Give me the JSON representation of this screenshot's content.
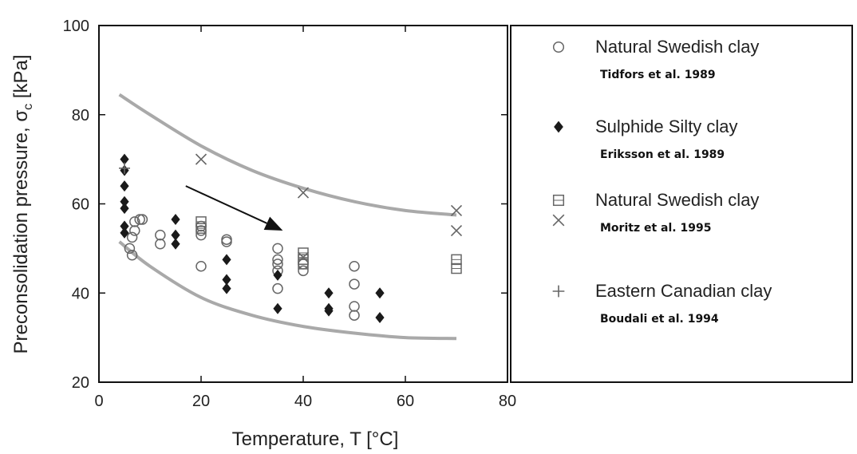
{
  "chart_data": {
    "type": "scatter",
    "xlabel": "Temperature, T [°C]",
    "ylabel_main": "Preconsolidation pressure, σ",
    "ylabel_sub": "c",
    "ylabel_end": " [kPa]",
    "xlim": [
      0,
      80
    ],
    "ylim": [
      20,
      100
    ],
    "x_ticks": [
      "0",
      "20",
      "40",
      "60",
      "80"
    ],
    "y_ticks": [
      "20",
      "40",
      "60",
      "80",
      "100"
    ],
    "legend_position": "right",
    "series": [
      {
        "marker": "circle",
        "points": [
          [
            6,
            50
          ],
          [
            6.5,
            48.5
          ],
          [
            6.5,
            52.5
          ],
          [
            7,
            54
          ],
          [
            7,
            56
          ],
          [
            8,
            56.5
          ],
          [
            8.5,
            56.5
          ],
          [
            12,
            51
          ],
          [
            12,
            53
          ],
          [
            20,
            46
          ],
          [
            20,
            53
          ],
          [
            20,
            54
          ],
          [
            20,
            55
          ],
          [
            25,
            52
          ],
          [
            25,
            51.5
          ],
          [
            35,
            50
          ],
          [
            35,
            47.5
          ],
          [
            35,
            46.5
          ],
          [
            35,
            45
          ],
          [
            35,
            41
          ],
          [
            40,
            45
          ],
          [
            40,
            46.5
          ],
          [
            50,
            46
          ],
          [
            50,
            42
          ],
          [
            50,
            37
          ],
          [
            50,
            35
          ]
        ]
      },
      {
        "marker": "diamond",
        "points": [
          [
            5,
            70
          ],
          [
            5,
            67.5
          ],
          [
            5,
            64
          ],
          [
            5,
            60.5
          ],
          [
            5,
            59
          ],
          [
            5,
            55
          ],
          [
            5,
            53.5
          ],
          [
            15,
            56.5
          ],
          [
            15,
            53
          ],
          [
            15,
            51
          ],
          [
            25,
            47.5
          ],
          [
            25,
            43
          ],
          [
            25,
            41
          ],
          [
            35,
            44
          ],
          [
            35,
            36.5
          ],
          [
            45,
            40
          ],
          [
            45,
            36.5
          ],
          [
            45,
            36
          ],
          [
            55,
            40
          ],
          [
            55,
            34.5
          ]
        ]
      },
      {
        "marker": "square",
        "points": [
          [
            20,
            56
          ],
          [
            20,
            54.5
          ],
          [
            40,
            49
          ],
          [
            40,
            47.5
          ],
          [
            40,
            46.5
          ],
          [
            70,
            47.5
          ],
          [
            70,
            45.5
          ]
        ]
      },
      {
        "marker": "x",
        "points": [
          [
            20,
            70
          ],
          [
            40,
            62.5
          ],
          [
            40,
            48
          ],
          [
            70,
            58.5
          ],
          [
            70,
            54
          ]
        ]
      },
      {
        "marker": "plus",
        "points": [
          [
            5,
            68
          ]
        ]
      }
    ],
    "bounds": [
      {
        "points": [
          [
            4,
            84.5
          ],
          [
            10,
            80
          ],
          [
            20,
            73
          ],
          [
            30,
            67.5
          ],
          [
            40,
            63.5
          ],
          [
            50,
            60.5
          ],
          [
            60,
            58.5
          ],
          [
            70,
            57.5
          ]
        ]
      },
      {
        "points": [
          [
            4,
            51.5
          ],
          [
            10,
            46
          ],
          [
            20,
            39
          ],
          [
            30,
            35
          ],
          [
            40,
            32.5
          ],
          [
            50,
            31
          ],
          [
            60,
            30
          ],
          [
            70,
            29.8
          ]
        ]
      }
    ],
    "arrow": {
      "from": [
        17,
        64
      ],
      "to": [
        36,
        54
      ]
    },
    "colors": {
      "curve": "#a9a9a9",
      "marker": "#1a1a1a",
      "open_marker": "#666666"
    }
  },
  "legend": {
    "entries": [
      {
        "label": "Natural Swedish clay",
        "ref": "Tidfors et al. 1989",
        "symbols": [
          "circle"
        ]
      },
      {
        "label": "Sulphide Silty clay",
        "ref": "Eriksson et al. 1989",
        "symbols": [
          "diamond"
        ]
      },
      {
        "label": "Natural Swedish clay",
        "ref": "Moritz et al. 1995",
        "symbols": [
          "square",
          "x"
        ]
      },
      {
        "label": "Eastern Canadian clay",
        "ref": "Boudali et al. 1994",
        "symbols": [
          "plus"
        ]
      }
    ]
  }
}
